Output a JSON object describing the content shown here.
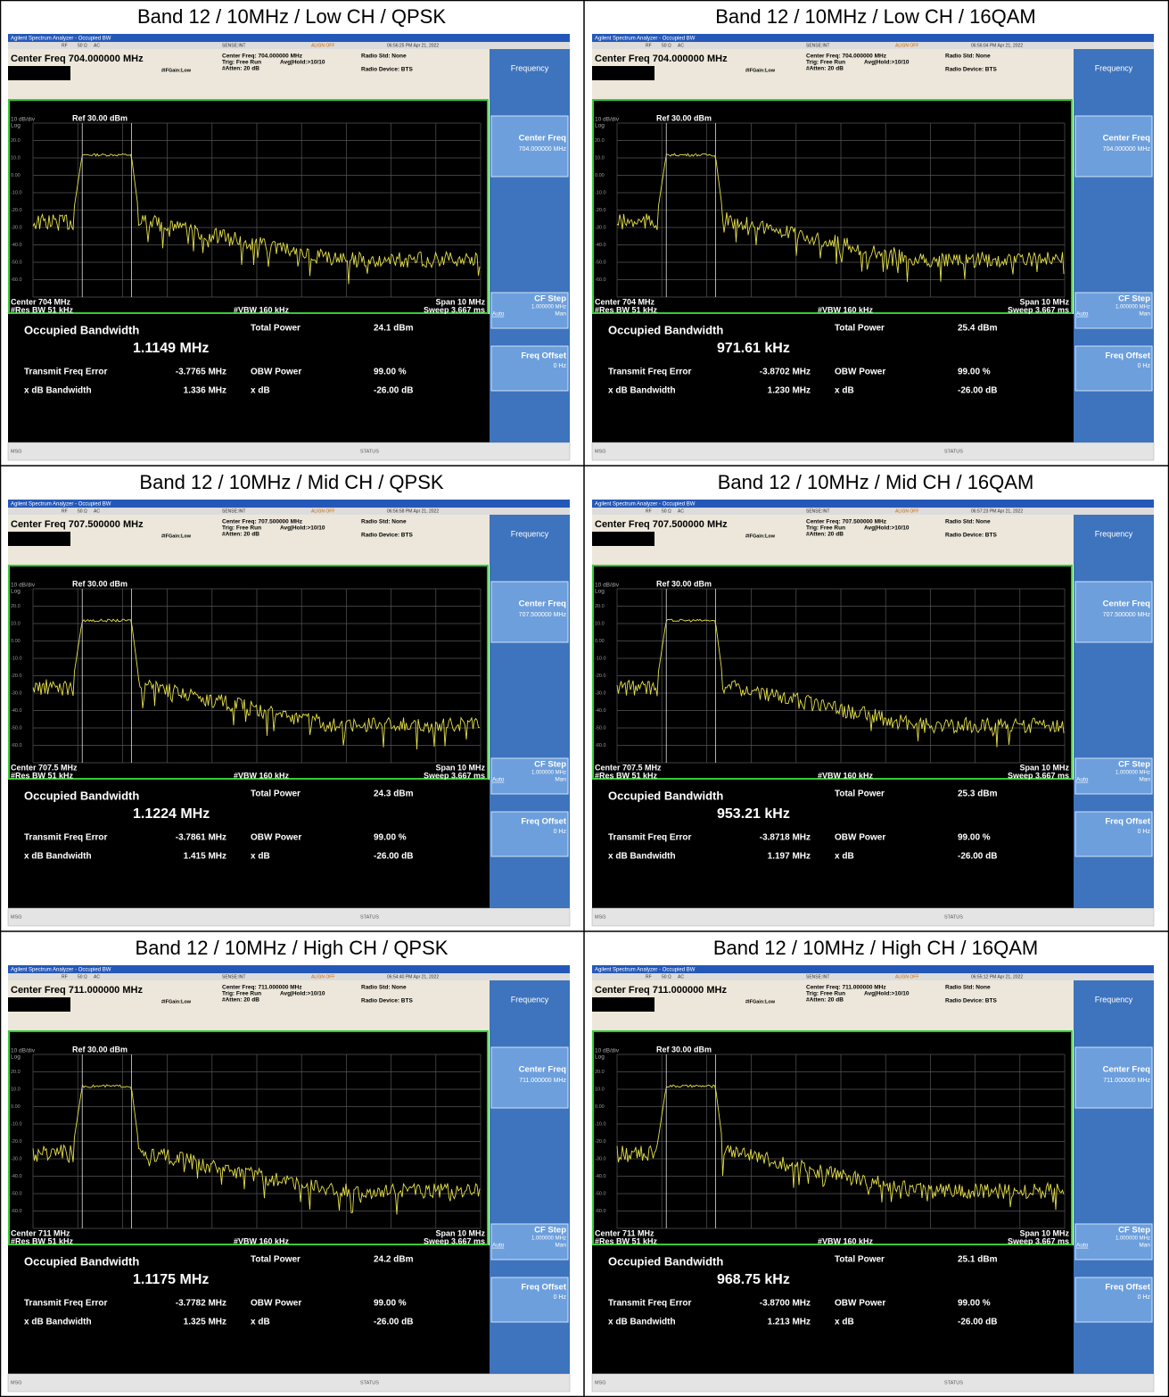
{
  "table": {
    "cells": [
      {
        "caption": "Band 12 / 10MHz / Low CH / QPSK",
        "timestamp": "06:56:25 PM Apr 21, 2022",
        "center_freq_label": "Center Freq 704.000000 MHz",
        "center_freq_info": "Center Freq: 704.000000 MHz",
        "center": "Center 704 MHz",
        "key_value": "704.000000 MHz",
        "occupied_bw": "1.1149 MHz",
        "total_power": "24.1 dBm",
        "freq_error": "-3.7765 MHz",
        "xdb_bw": "1.336 MHz"
      },
      {
        "caption": "Band 12 / 10MHz / Low CH / 16QAM",
        "timestamp": "06:56:04 PM Apr 21, 2022",
        "center_freq_label": "Center Freq 704.000000 MHz",
        "center_freq_info": "Center Freq: 704.000000 MHz",
        "center": "Center 704 MHz",
        "key_value": "704.000000 MHz",
        "occupied_bw": "971.61 kHz",
        "total_power": "25.4 dBm",
        "freq_error": "-3.8702 MHz",
        "xdb_bw": "1.230 MHz"
      },
      {
        "caption": "Band 12 / 10MHz / Mid CH / QPSK",
        "timestamp": "06:56:58 PM Apr 21, 2022",
        "center_freq_label": "Center Freq 707.500000 MHz",
        "center_freq_info": "Center Freq: 707.500000 MHz",
        "center": "Center 707.5 MHz",
        "key_value": "707.500000 MHz",
        "occupied_bw": "1.1224 MHz",
        "total_power": "24.3 dBm",
        "freq_error": "-3.7861 MHz",
        "xdb_bw": "1.415 MHz"
      },
      {
        "caption": "Band 12 / 10MHz / Mid CH / 16QAM",
        "timestamp": "06:57:23 PM Apr 21, 2022",
        "center_freq_label": "Center Freq 707.500000 MHz",
        "center_freq_info": "Center Freq: 707.500000 MHz",
        "center": "Center 707.5 MHz",
        "key_value": "707.500000 MHz",
        "occupied_bw": "953.21 kHz",
        "total_power": "25.3 dBm",
        "freq_error": "-3.8718 MHz",
        "xdb_bw": "1.197 MHz"
      },
      {
        "caption": "Band 12 / 10MHz / High CH / QPSK",
        "timestamp": "06:54:40 PM Apr 21, 2022",
        "center_freq_label": "Center Freq 711.000000 MHz",
        "center_freq_info": "Center Freq: 711.000000 MHz",
        "center": "Center 711 MHz",
        "key_value": "711.000000 MHz",
        "occupied_bw": "1.1175 MHz",
        "total_power": "24.2 dBm",
        "freq_error": "-3.7782 MHz",
        "xdb_bw": "1.325 MHz"
      },
      {
        "caption": "Band 12 / 10MHz / High CH / 16QAM",
        "timestamp": "06:55:12 PM Apr 21, 2022",
        "center_freq_label": "Center Freq 711.000000 MHz",
        "center_freq_info": "Center Freq: 711.000000 MHz",
        "center": "Center 711 MHz",
        "key_value": "711.000000 MHz",
        "occupied_bw": "968.75 kHz",
        "total_power": "25.1 dBm",
        "freq_error": "-3.8700 MHz",
        "xdb_bw": "1.213 MHz"
      }
    ]
  },
  "analyzer": {
    "title_bar": "Agilent Spectrum Analyzer - Occupied BW",
    "rf": "RF",
    "imp": "50 Ω",
    "ac": "AC",
    "sense": "SENSE:INT",
    "align": "ALIGN OFF",
    "trig": "Trig: Free Run",
    "avg": "Avg|Hold:>10/10",
    "ifgain": "#IFGain:Low",
    "atten": "#Atten: 20 dB",
    "radio_std": "Radio Std: None",
    "radio_device": "Radio Device: BTS",
    "scale": "10 dB/div",
    "ref": "Ref 30.00 dBm",
    "log": "Log",
    "y_labels": [
      "20.0",
      "10.0",
      "0.00",
      "-10.0",
      "-20.0",
      "-30.0",
      "-40.0",
      "-50.0",
      "-60.0"
    ],
    "res_bw": "#Res BW 51 kHz",
    "vbw": "#VBW 160 kHz",
    "span": "Span 10 MHz",
    "sweep": "Sweep 3.667 ms",
    "occ_label": "Occupied Bandwidth",
    "total_label": "Total Power",
    "err_label": "Transmit Freq Error",
    "obw_label": "OBW Power",
    "obw_value": "99.00 %",
    "xdb_label": "x dB Bandwidth",
    "xdb_param_label": "x dB",
    "xdb_param_value": "-26.00 dB",
    "softkeys": {
      "menu": "Frequency",
      "center": "Center Freq",
      "cf_step": "CF Step",
      "cf_step_value": "1.000000 MHz",
      "auto": "Auto",
      "man": "Man",
      "offset": "Freq Offset",
      "offset_value": "0 Hz"
    },
    "msg": "MSG",
    "status": "STATUS"
  }
}
